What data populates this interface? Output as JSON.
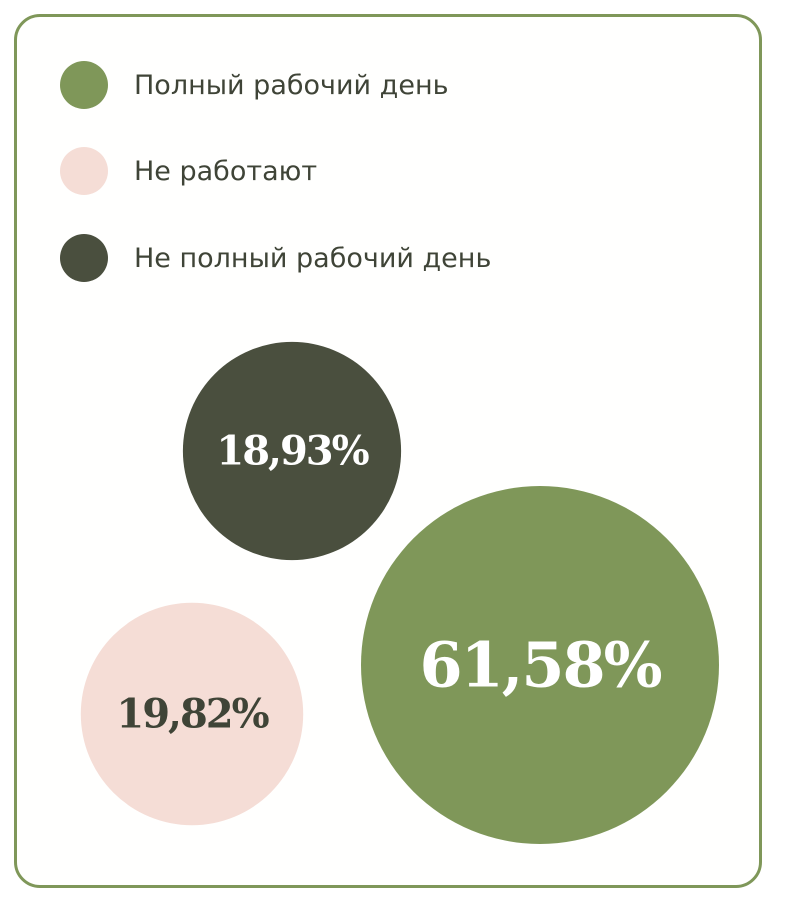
{
  "chart_data": {
    "type": "bubble",
    "legend_placement": "top-left",
    "series": [
      {
        "name": "Полный рабочий день",
        "value": 61.58,
        "label": "61,58%",
        "color": "#7f9759",
        "label_color": "#ffffff"
      },
      {
        "name": "Не работают",
        "value": 19.82,
        "label": "19,82%",
        "color": "#f5ddd6",
        "label_color": "#3f4437"
      },
      {
        "name": "Не полный рабочий день",
        "value": 18.93,
        "label": "18,93%",
        "color": "#4a4f3e",
        "label_color": "#ffffff"
      }
    ]
  },
  "colors": {
    "border": "#7f9759",
    "text": "#3f4437",
    "background": "#fffffe"
  }
}
